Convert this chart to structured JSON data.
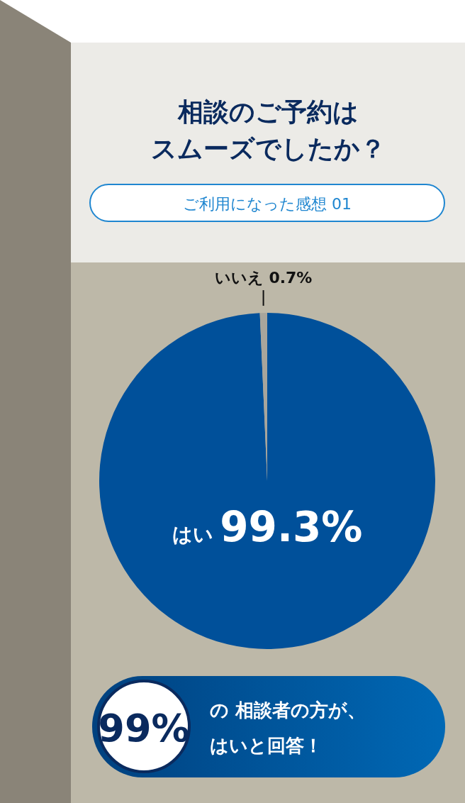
{
  "chart_data": {
    "type": "pie",
    "title": "相談のご予約はスムーズでしたか？",
    "subtitle": "ご利用になった感想 01",
    "categories": [
      "はい",
      "いいえ"
    ],
    "values": [
      99.3,
      0.7
    ],
    "colors": [
      "#00509a",
      "#a8a59c"
    ],
    "value_labels": [
      "99.3%",
      "0.7%"
    ],
    "annotations": [
      "99%",
      "の 相談者の方が、",
      "はいと回答！"
    ]
  }
}
